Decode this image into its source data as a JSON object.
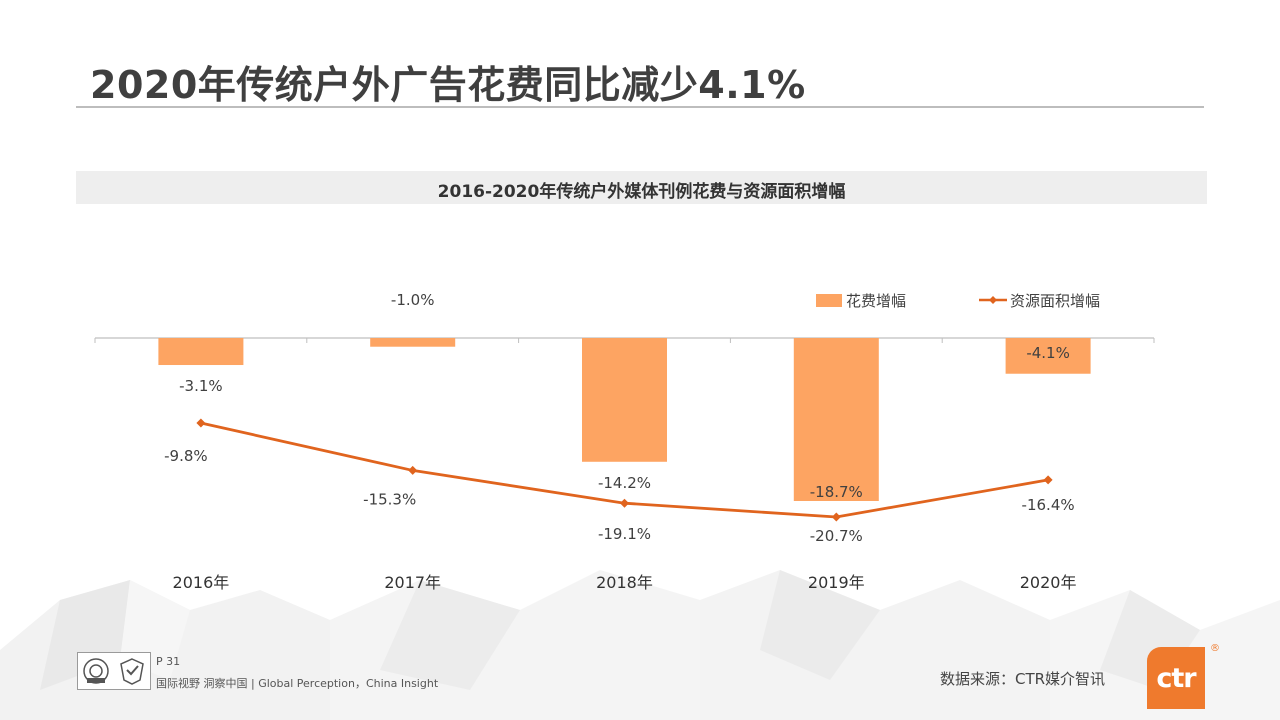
{
  "page": {
    "title": "2020年传统户外广告花费同比减少4.1%",
    "page_number": "P 31",
    "tagline": "国际视野  洞察中国 | Global Perception，China Insight",
    "source": "数据来源：CTR媒介智讯",
    "brand": "ctr",
    "brand_mark": "®"
  },
  "colors": {
    "bar": "#fda462",
    "line": "#e0641e",
    "brand": "#ef7a2d"
  },
  "chart_data": {
    "type": "bar",
    "title": "2016-2020年传统户外媒体刊例花费与资源面积增幅",
    "categories": [
      "2016年",
      "2017年",
      "2018年",
      "2019年",
      "2020年"
    ],
    "unit": "%",
    "series": [
      {
        "name": "花费增幅",
        "type": "bar",
        "values": [
          -3.1,
          -1.0,
          -14.2,
          -18.7,
          -4.1
        ],
        "labels": [
          "-3.1%",
          "-1.0%",
          "-14.2%",
          "-18.7%",
          "-4.1%"
        ]
      },
      {
        "name": "资源面积增幅",
        "type": "line",
        "marker": "diamond",
        "values": [
          -9.8,
          -15.3,
          -19.1,
          -20.7,
          -16.4
        ],
        "labels": [
          "-9.8%",
          "-15.3%",
          "-19.1%",
          "-20.7%",
          "-16.4%"
        ]
      }
    ],
    "legend_position": "top-right",
    "grid": false
  }
}
